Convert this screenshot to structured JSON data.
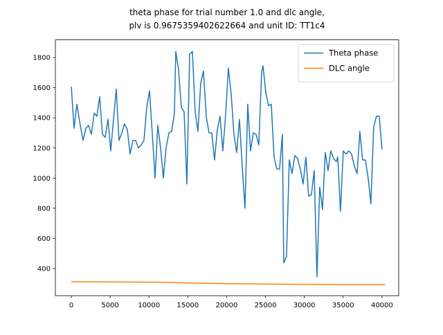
{
  "chart_data": {
    "type": "line",
    "title": [
      "theta phase for trial number 1.0 and dlc angle,",
      "plv is 0.9675359402622664 and unit ID: TT1c4"
    ],
    "xlim": [
      -2050,
      42150
    ],
    "ylim": [
      220,
      1917
    ],
    "xticks": [
      0,
      5000,
      10000,
      15000,
      20000,
      25000,
      30000,
      35000,
      40000
    ],
    "yticks": [
      400,
      600,
      800,
      1000,
      1200,
      1400,
      1600,
      1800
    ],
    "legend": "upper right",
    "series": [
      {
        "name": "Theta phase",
        "color": "#1f77b4",
        "x": [
          0,
          356,
          713,
          1158,
          1515,
          1871,
          2227,
          2584,
          2940,
          3296,
          3653,
          4009,
          4365,
          4722,
          5078,
          5434,
          5791,
          6147,
          6503,
          6860,
          7216,
          7573,
          7929,
          8285,
          8642,
          8998,
          9354,
          9711,
          10067,
          10423,
          10780,
          11136,
          11492,
          11849,
          12205,
          12561,
          12918,
          13274,
          13452,
          13809,
          14165,
          14521,
          14878,
          15234,
          15591,
          15947,
          16303,
          16660,
          17016,
          17372,
          17729,
          18085,
          18441,
          18798,
          19154,
          19510,
          19867,
          20223,
          20579,
          20936,
          21292,
          21649,
          22005,
          22361,
          22718,
          23074,
          23430,
          23787,
          24143,
          24499,
          24677,
          25034,
          25390,
          25746,
          26103,
          26459,
          26815,
          27172,
          27350,
          27707,
          28063,
          28419,
          28776,
          29132,
          29488,
          29845,
          30201,
          30557,
          30914,
          31270,
          31627,
          31983,
          32339,
          32696,
          33052,
          33408,
          33765,
          34121,
          34299,
          34656,
          35012,
          35368,
          35725,
          36081,
          36437,
          36794,
          37150,
          37506,
          37863,
          38219,
          38575,
          38932,
          39288,
          39644,
          40001
        ],
        "values": [
          1607,
          1330,
          1490,
          1350,
          1250,
          1330,
          1350,
          1290,
          1430,
          1410,
          1540,
          1290,
          1270,
          1390,
          1180,
          1390,
          1590,
          1250,
          1300,
          1360,
          1320,
          1160,
          1250,
          1250,
          1200,
          1220,
          1250,
          1470,
          1580,
          1300,
          1000,
          1350,
          1200,
          1000,
          1200,
          1300,
          1310,
          1430,
          1840,
          1720,
          1470,
          1440,
          960,
          1820,
          1840,
          1440,
          1310,
          1630,
          1710,
          1410,
          1300,
          1300,
          1120,
          1320,
          1410,
          1180,
          1420,
          1730,
          1560,
          1290,
          1170,
          1390,
          1080,
          800,
          1490,
          1180,
          1300,
          1290,
          1220,
          1700,
          1745,
          1570,
          1480,
          1490,
          1140,
          1060,
          1060,
          1290,
          438,
          480,
          1120,
          1030,
          1150,
          1130,
          1060,
          960,
          1140,
          880,
          890,
          1050,
          345,
          940,
          790,
          1170,
          1050,
          1180,
          1130,
          1110,
          1140,
          780,
          1180,
          1160,
          1180,
          1160,
          1080,
          1030,
          1310,
          1120,
          1120,
          1000,
          830,
          1340,
          1410,
          1410,
          1190
        ]
      },
      {
        "name": "DLC angle",
        "color": "#ff7f0e",
        "x": [
          0,
          5000,
          10000,
          15000,
          20000,
          25000,
          30000,
          35000,
          40400
        ],
        "values": [
          312,
          311,
          310,
          305,
          300,
          297,
          295,
          294,
          294
        ]
      }
    ]
  }
}
